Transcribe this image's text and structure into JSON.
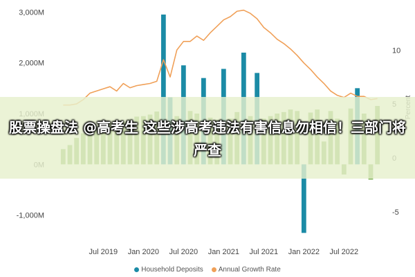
{
  "chart_data": {
    "type": "bar",
    "title": "",
    "xlabel": "",
    "ylabel_right": "Percent",
    "left_axis": {
      "ticks": [
        "3,000M",
        "2,000M",
        "1,000M",
        "0M",
        "-1,000M"
      ],
      "ylim": [
        -1400,
        3100
      ]
    },
    "right_axis": {
      "ticks": [
        "10",
        "5",
        "0",
        "-5"
      ],
      "ylim": [
        -7.2,
        14.0
      ]
    },
    "x_ticks": [
      "Jul 2019",
      "Jan 2020",
      "Jul 2020",
      "Jan 2021",
      "Jul 2021",
      "Jan 2022",
      "Jul 2022"
    ],
    "x_tick_months": [
      6,
      12,
      18,
      24,
      30,
      36,
      42
    ],
    "x_range": [
      -2,
      49
    ],
    "legend_position": "bottom",
    "grid": false,
    "series": [
      {
        "name": "Household Deposits",
        "kind": "bar",
        "color": "#78ad4f",
        "highlight_color": "#1b8ba6",
        "months": [
          0,
          1,
          2,
          3,
          4,
          5,
          6,
          7,
          8,
          9,
          10,
          11,
          12,
          13,
          14,
          15,
          16,
          17,
          18,
          19,
          20,
          21,
          22,
          23,
          24,
          25,
          26,
          27,
          28,
          29,
          30,
          31,
          32,
          33,
          34,
          35,
          36,
          37,
          38,
          39,
          40,
          41,
          42,
          43,
          44,
          45,
          46,
          47
        ],
        "values": [
          300,
          380,
          520,
          610,
          660,
          720,
          700,
          820,
          760,
          840,
          880,
          940,
          950,
          980,
          1040,
          2950,
          1320,
          950,
          1950,
          1050,
          1000,
          1700,
          920,
          880,
          1880,
          900,
          1030,
          2200,
          950,
          1800,
          900,
          950,
          1000,
          1030,
          1080,
          1050,
          -1350,
          1020,
          1080,
          450,
          1050,
          900,
          -200,
          1100,
          1500,
          1000,
          -300,
          1150
        ],
        "highlighted": [
          15,
          16,
          18,
          21,
          24,
          27,
          29,
          36,
          44
        ]
      },
      {
        "name": "Annual Growth Rate",
        "kind": "line",
        "color": "#f0a058",
        "months": [
          0,
          1,
          2,
          3,
          4,
          5,
          6,
          7,
          8,
          9,
          10,
          11,
          12,
          13,
          14,
          15,
          16,
          17,
          18,
          19,
          20,
          21,
          22,
          23,
          24,
          25,
          26,
          27,
          28,
          29,
          30,
          31,
          32,
          33,
          34,
          35,
          36,
          37,
          38,
          39,
          40,
          41,
          42,
          43,
          44,
          45,
          46,
          47
        ],
        "values": [
          4.9,
          4.9,
          5.0,
          5.4,
          6.0,
          6.2,
          6.4,
          6.6,
          6.2,
          6.9,
          6.5,
          6.7,
          6.8,
          6.9,
          7.1,
          9.1,
          7.5,
          10.0,
          10.8,
          10.8,
          11.3,
          10.9,
          11.6,
          12.2,
          12.8,
          13.1,
          13.6,
          13.7,
          13.4,
          12.9,
          12.1,
          11.6,
          11.0,
          10.6,
          10.1,
          9.5,
          8.8,
          8.2,
          7.5,
          6.9,
          6.2,
          5.8,
          5.6,
          6.0,
          5.7,
          5.7,
          5.4,
          5.5
        ]
      }
    ]
  },
  "caption": "股票操盘法 @高考生 这些涉高考违法有害信息勿相信！三部门将严查",
  "legend": [
    {
      "label": "Household Deposits",
      "color": "#1b8ba6"
    },
    {
      "label": "Annual Growth Rate",
      "color": "#f0a058"
    }
  ]
}
